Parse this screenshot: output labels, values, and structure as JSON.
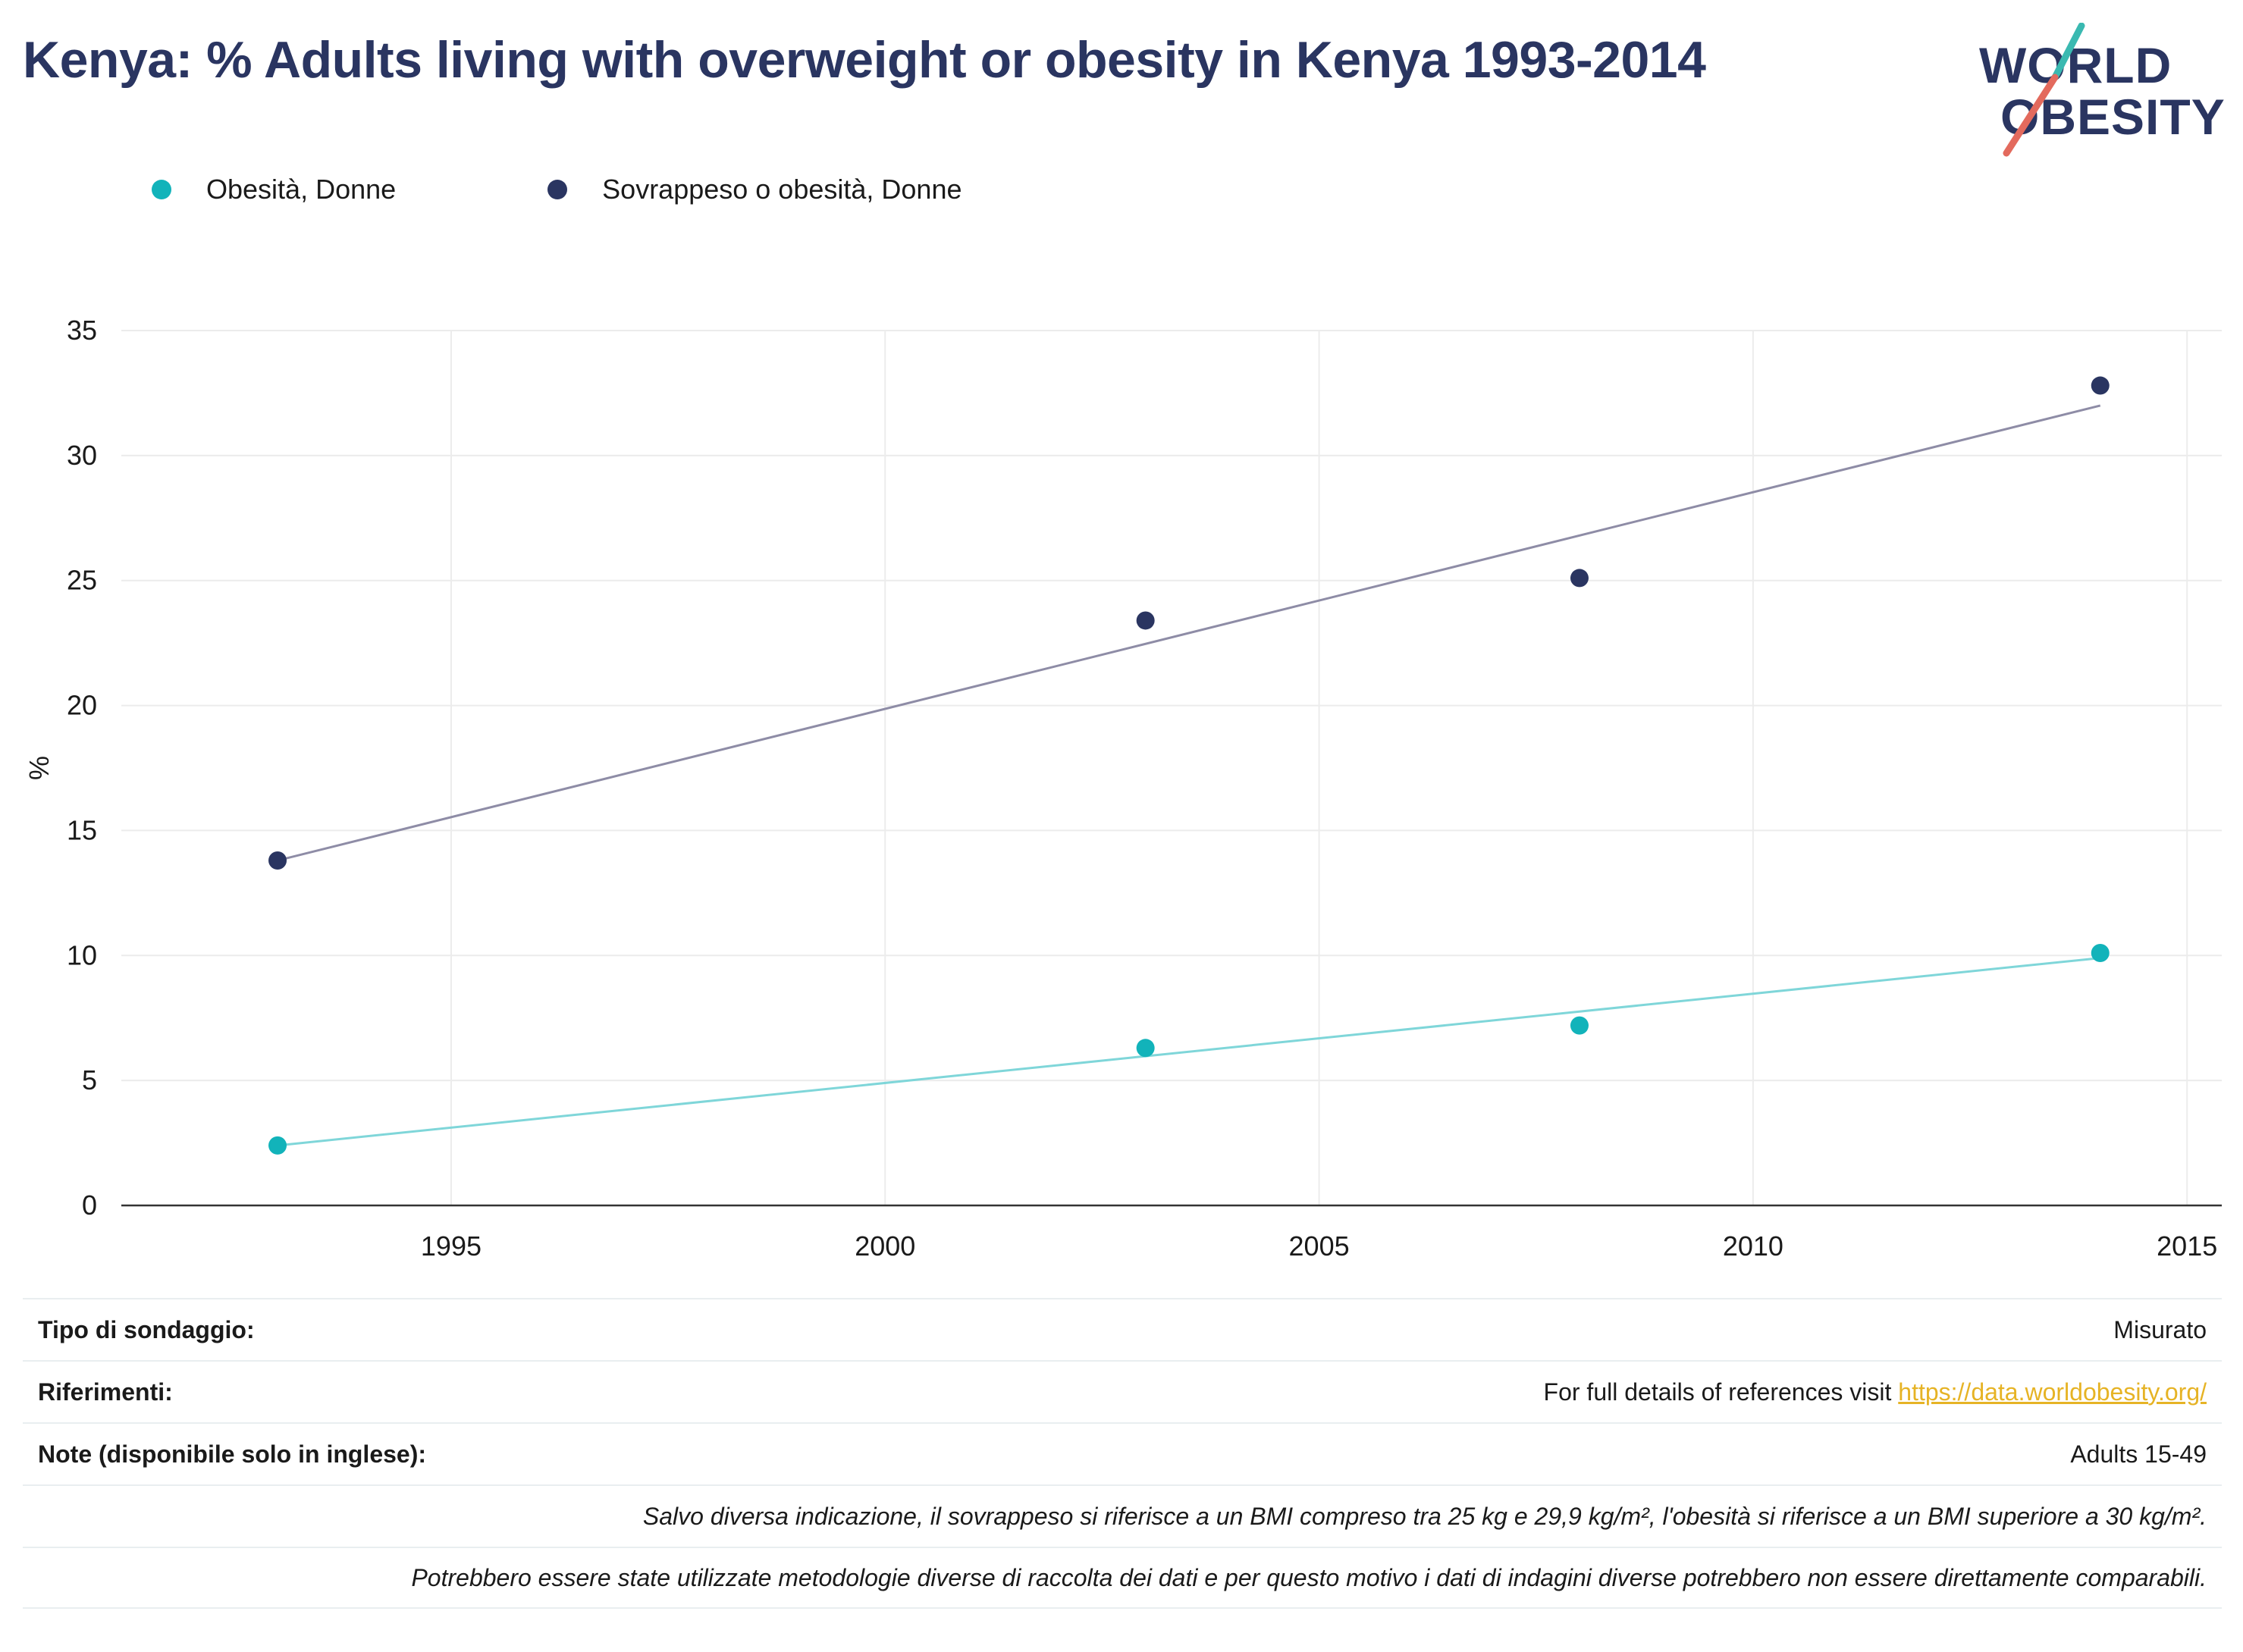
{
  "title": "Kenya: % Adults living with overweight or obesity in Kenya 1993-2014",
  "logo": {
    "line1": "WORLD",
    "line2": "OBESITY"
  },
  "colors": {
    "obesity": "#12b3ba",
    "overweight": "#2a3561",
    "overweight_trend": "#8e8ca6",
    "obesity_trend": "#7fd6d9",
    "title": "#2a3561",
    "link": "#e6b325"
  },
  "chart_data": {
    "type": "scatter",
    "ylabel": "%",
    "xlabel": "",
    "xlim": [
      1991.2,
      2015.4
    ],
    "ylim": [
      0,
      35
    ],
    "xticks": [
      "1995",
      "2000",
      "2005",
      "2010",
      "2015"
    ],
    "yticks": [
      "0",
      "5",
      "10",
      "15",
      "20",
      "25",
      "30",
      "35"
    ],
    "grid": true,
    "legend_position": "top-left",
    "series": [
      {
        "name": "Obesità, Donne",
        "color": "#12b3ba",
        "x": [
          1993,
          2003,
          2008,
          2014
        ],
        "y": [
          2.4,
          6.3,
          7.2,
          10.1
        ],
        "trend": {
          "x": [
            1993,
            2014
          ],
          "y": [
            2.4,
            9.9
          ],
          "color": "#7fd6d9"
        }
      },
      {
        "name": "Sovrappeso o obesità, Donne",
        "color": "#2a3561",
        "x": [
          1993,
          2003,
          2008,
          2014
        ],
        "y": [
          13.8,
          23.4,
          25.1,
          32.8
        ],
        "trend": {
          "x": [
            1993,
            2014
          ],
          "y": [
            13.8,
            32.0
          ],
          "color": "#8e8ca6"
        }
      }
    ]
  },
  "footer": {
    "survey_type_label": "Tipo di sondaggio:",
    "survey_type_value": "Misurato",
    "references_label": "Riferimenti:",
    "references_text": "For full details of references visit ",
    "references_link": "https://data.worldobesity.org/",
    "notes_label": "Note (disponibile solo in inglese):",
    "notes_value": "Adults 15-49",
    "note_bmi": "Salvo diversa indicazione, il sovrappeso si riferisce a un BMI compreso tra 25 kg e 29,9 kg/m², l'obesità si riferisce a un BMI superiore a 30 kg/m².",
    "note_method": "Potrebbero essere state utilizzate metodologie diverse di raccolta dei dati e per questo motivo i dati di indagini diverse potrebbero non essere direttamente comparabili."
  }
}
